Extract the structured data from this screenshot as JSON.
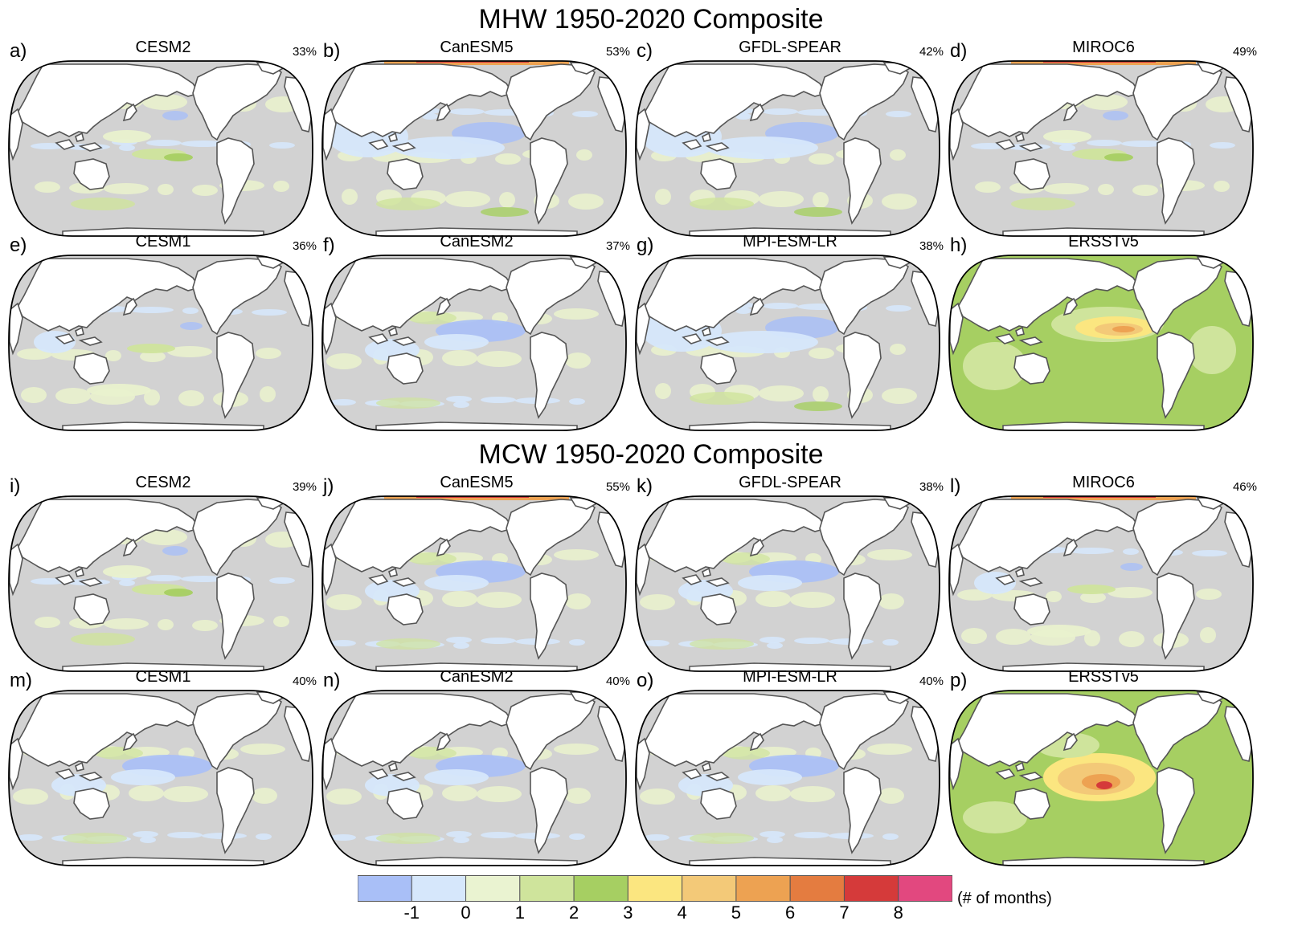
{
  "sections": [
    {
      "title": "MHW 1950-2020 Composite"
    },
    {
      "title": "MCW 1950-2020 Composite"
    }
  ],
  "panels": [
    {
      "letter": "a)",
      "model": "CESM2",
      "pct": "33%",
      "style": "model",
      "arctic": "none",
      "highlight": "trop_green"
    },
    {
      "letter": "b)",
      "model": "CanESM5",
      "pct": "53%",
      "style": "model",
      "arctic": "hot",
      "highlight": "blue_west"
    },
    {
      "letter": "c)",
      "model": "GFDL-SPEAR",
      "pct": "42%",
      "style": "model",
      "arctic": "none",
      "highlight": "blue_west"
    },
    {
      "letter": "d)",
      "model": "MIROC6",
      "pct": "49%",
      "style": "model",
      "arctic": "hot",
      "highlight": "trop_green"
    },
    {
      "letter": "e)",
      "model": "CESM1",
      "pct": "36%",
      "style": "model",
      "arctic": "none",
      "highlight": "mixed"
    },
    {
      "letter": "f)",
      "model": "CanESM2",
      "pct": "37%",
      "style": "model",
      "arctic": "none",
      "highlight": "blue_central"
    },
    {
      "letter": "g)",
      "model": "MPI-ESM-LR",
      "pct": "38%",
      "style": "model",
      "arctic": "none",
      "highlight": "blue_west"
    },
    {
      "letter": "h)",
      "model": "ERSSTv5",
      "pct": "",
      "style": "obs_mhw",
      "arctic": "none",
      "highlight": "obs"
    },
    {
      "letter": "i)",
      "model": "CESM2",
      "pct": "39%",
      "style": "model",
      "arctic": "none",
      "highlight": "trop_green"
    },
    {
      "letter": "j)",
      "model": "CanESM5",
      "pct": "55%",
      "style": "model",
      "arctic": "hot",
      "highlight": "blue_central"
    },
    {
      "letter": "k)",
      "model": "GFDL-SPEAR",
      "pct": "38%",
      "style": "model",
      "arctic": "none",
      "highlight": "blue_central"
    },
    {
      "letter": "l)",
      "model": "MIROC6",
      "pct": "46%",
      "style": "model",
      "arctic": "hot",
      "highlight": "mixed"
    },
    {
      "letter": "m)",
      "model": "CESM1",
      "pct": "40%",
      "style": "model",
      "arctic": "none",
      "highlight": "blue_central"
    },
    {
      "letter": "n)",
      "model": "CanESM2",
      "pct": "40%",
      "style": "model",
      "arctic": "none",
      "highlight": "blue_central"
    },
    {
      "letter": "o)",
      "model": "MPI-ESM-LR",
      "pct": "40%",
      "style": "model",
      "arctic": "none",
      "highlight": "blue_central"
    },
    {
      "letter": "p)",
      "model": "ERSSTv5",
      "pct": "",
      "style": "obs_mcw",
      "arctic": "none",
      "highlight": "obs"
    }
  ],
  "colorbar": {
    "bins": [
      {
        "color": "#a9bff7"
      },
      {
        "color": "#d6e7fb"
      },
      {
        "color": "#eaf3d1"
      },
      {
        "color": "#cfe49c"
      },
      {
        "color": "#a6cf62"
      },
      {
        "color": "#fbe680"
      },
      {
        "color": "#f3c978"
      },
      {
        "color": "#eda252"
      },
      {
        "color": "#e47c40"
      },
      {
        "color": "#d53a3a"
      },
      {
        "color": "#e2487f"
      }
    ],
    "ticks": [
      "-1",
      "0",
      "1",
      "2",
      "3",
      "4",
      "5",
      "6",
      "7",
      "8"
    ],
    "unit": "(# of months)"
  },
  "colors": {
    "ocean_gray": "#d2d2d2",
    "land": "#ffffff",
    "coast": "#555555",
    "frame": "#000000"
  }
}
